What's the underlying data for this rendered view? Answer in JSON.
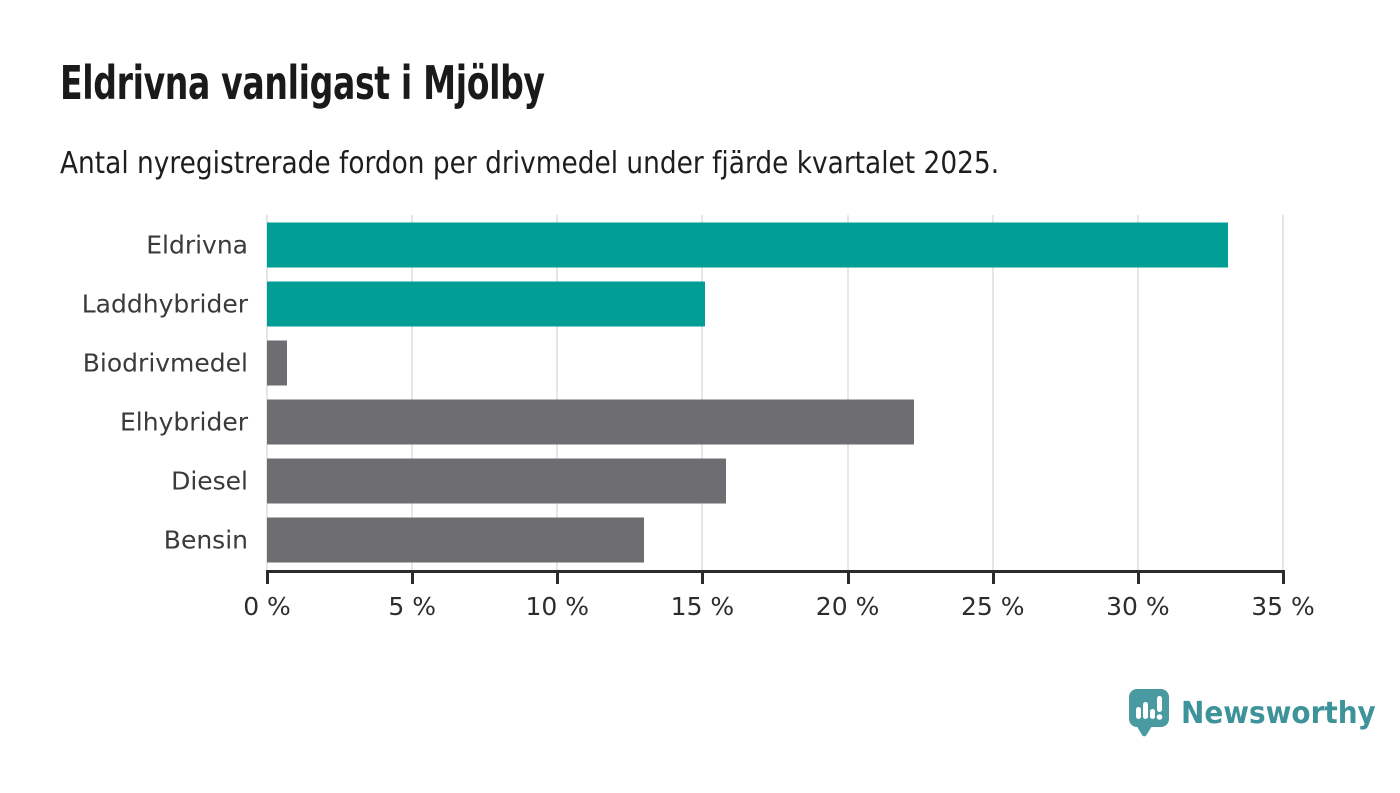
{
  "header": {
    "title": "Eldrivna vanligast i Mjölby",
    "subtitle": "Antal nyregistrerade fordon per drivmedel under fjärde kvartalet 2025."
  },
  "chart_data": {
    "type": "bar",
    "orientation": "horizontal",
    "title": "Eldrivna vanligast i Mjölby",
    "subtitle": "Antal nyregistrerade fordon per drivmedel under fjärde kvartalet 2025.",
    "categories": [
      "Eldrivna",
      "Laddhybrider",
      "Biodrivmedel",
      "Elhybrider",
      "Diesel",
      "Bensin"
    ],
    "values": [
      33.1,
      15.1,
      0.7,
      22.3,
      15.8,
      13.0
    ],
    "unit": "%",
    "bar_colors": [
      "#009e95",
      "#009e95",
      "#6d6d72",
      "#6d6d72",
      "#6d6d72",
      "#6d6d72"
    ],
    "highlight_color": "#009e95",
    "default_color": "#6d6d72",
    "xlim": [
      0,
      35
    ],
    "x_ticks": [
      0,
      5,
      10,
      15,
      20,
      25,
      30,
      35
    ],
    "x_tick_labels": [
      "0 %",
      "5 %",
      "10 %",
      "15 %",
      "20 %",
      "25 %",
      "30 %",
      "35 %"
    ],
    "grid": "vertical",
    "gridline_color": "#e6e6e6",
    "axis_color": "#2b2b2b",
    "legend": "none"
  },
  "footer": {
    "brand_name": "Newsworthy",
    "brand_text_color": "#3e929a",
    "brand_icon_color": "#4a9aa1",
    "brand_icon": "bar-chart-speech-bubble-icon"
  }
}
